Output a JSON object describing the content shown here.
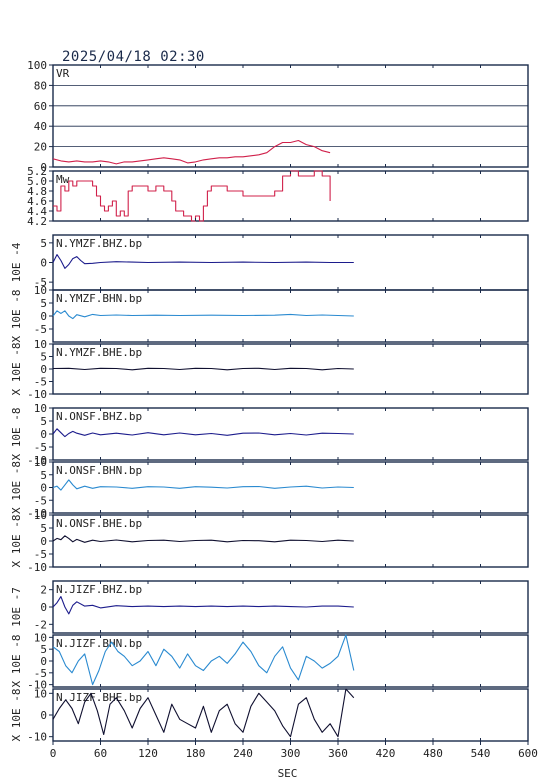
{
  "header": {
    "datetime": "2025/04/18 02:30"
  },
  "colors": {
    "frame": "#1a2a4a",
    "vr": "#d0204a",
    "mw": "#d0204a",
    "dark": "#1c1c8c",
    "light": "#2a8ad0",
    "black": "#101030"
  },
  "chart_data": {
    "type": "line",
    "xlabel": "SEC",
    "xlim": [
      0,
      600
    ],
    "xticks": [
      "0",
      "60",
      "120",
      "180",
      "240",
      "300",
      "360",
      "420",
      "480",
      "540",
      "600"
    ],
    "panels": [
      {
        "id": "vr",
        "title": "VR",
        "color": "#d0204a",
        "ylim": [
          0,
          100
        ],
        "grid": true,
        "yticks": [
          "0",
          "20",
          "40",
          "60",
          "80",
          "100"
        ],
        "ylabel": "",
        "series": {
          "x": [
            0,
            10,
            20,
            30,
            40,
            50,
            60,
            70,
            80,
            90,
            100,
            110,
            120,
            130,
            140,
            150,
            160,
            170,
            180,
            190,
            200,
            210,
            220,
            230,
            240,
            250,
            260,
            270,
            280,
            290,
            300,
            310,
            320,
            330,
            340,
            350
          ],
          "y": [
            8,
            6,
            5,
            6,
            5,
            5,
            6,
            5,
            3,
            5,
            5,
            6,
            7,
            8,
            9,
            8,
            7,
            4,
            5,
            7,
            8,
            9,
            9,
            10,
            10,
            11,
            12,
            14,
            20,
            24,
            24,
            26,
            22,
            20,
            16,
            14
          ]
        }
      },
      {
        "id": "mw",
        "title": "Mw",
        "color": "#d0204a",
        "ylim": [
          4.2,
          5.2
        ],
        "grid": false,
        "yticks": [
          "4.2",
          "4.4",
          "4.6",
          "4.8",
          "5.0",
          "5.2"
        ],
        "ylabel": "",
        "series": {
          "x": [
            0,
            5,
            10,
            15,
            20,
            25,
            30,
            40,
            50,
            55,
            60,
            65,
            70,
            75,
            80,
            85,
            90,
            95,
            100,
            110,
            120,
            130,
            140,
            150,
            155,
            160,
            165,
            170,
            175,
            180,
            185,
            190,
            195,
            200,
            210,
            220,
            230,
            240,
            250,
            260,
            270,
            280,
            290,
            300,
            310,
            320,
            330,
            340,
            350
          ],
          "y": [
            4.5,
            4.4,
            4.9,
            4.8,
            5.0,
            4.9,
            5.0,
            5.0,
            4.9,
            4.7,
            4.5,
            4.4,
            4.5,
            4.6,
            4.3,
            4.4,
            4.3,
            4.8,
            4.9,
            4.9,
            4.8,
            4.9,
            4.8,
            4.6,
            4.4,
            4.4,
            4.3,
            4.3,
            4.2,
            4.3,
            4.2,
            4.5,
            4.8,
            4.9,
            4.9,
            4.8,
            4.8,
            4.7,
            4.7,
            4.7,
            4.7,
            4.8,
            5.1,
            5.2,
            5.1,
            5.1,
            5.2,
            5.1,
            4.6
          ]
        }
      },
      {
        "id": "ymzf-bhz",
        "title": "N.YMZF.BHZ.bp",
        "color": "#1c1c8c",
        "ylim": [
          -7,
          7
        ],
        "grid": false,
        "yticks": [
          "-5",
          "0",
          "5"
        ],
        "ylabel": "10E -4",
        "series": {
          "x": [
            0,
            5,
            10,
            15,
            20,
            25,
            30,
            35,
            40,
            50,
            60,
            80,
            100,
            120,
            160,
            200,
            240,
            280,
            320,
            350,
            380
          ],
          "y": [
            0,
            2,
            0.5,
            -1.5,
            -0.5,
            1,
            1.5,
            0.5,
            -0.3,
            -0.2,
            0,
            0.2,
            0.1,
            0,
            0.1,
            0,
            0.1,
            0,
            0.1,
            0,
            0
          ]
        }
      },
      {
        "id": "ymzf-bhn",
        "title": "N.YMZF.BHN.bp",
        "color": "#2a8ad0",
        "ylim": [
          -10,
          10
        ],
        "grid": false,
        "yticks": [
          "-5",
          "0",
          "5",
          "10"
        ],
        "ylabel": "X 10E -8",
        "series": {
          "x": [
            0,
            5,
            10,
            15,
            20,
            25,
            30,
            40,
            50,
            60,
            80,
            100,
            130,
            160,
            200,
            240,
            280,
            300,
            320,
            340,
            360,
            380
          ],
          "y": [
            0,
            2,
            1,
            2,
            0,
            -1,
            0.5,
            -0.3,
            0.6,
            0.2,
            0.4,
            0.2,
            0.3,
            0.2,
            0.3,
            0.2,
            0.3,
            0.6,
            0.2,
            0.4,
            0.2,
            0
          ]
        }
      },
      {
        "id": "ymzf-bhe",
        "title": "N.YMZF.BHE.bp",
        "color": "#101030",
        "ylim": [
          -10,
          10
        ],
        "grid": false,
        "yticks": [
          "-10",
          "-5",
          "0",
          "5",
          "10"
        ],
        "ylabel": "X 10E -8",
        "series": {
          "x": [
            0,
            20,
            40,
            60,
            80,
            100,
            120,
            140,
            160,
            180,
            200,
            220,
            240,
            260,
            280,
            300,
            320,
            340,
            360,
            380
          ],
          "y": [
            0.2,
            0.3,
            -0.2,
            0.3,
            0.2,
            -0.3,
            0.3,
            0.2,
            -0.2,
            0.3,
            0.2,
            -0.3,
            0.2,
            0.3,
            -0.2,
            0.3,
            0.2,
            -0.3,
            0.2,
            0
          ]
        }
      },
      {
        "id": "onsf-bhz",
        "title": "N.ONSF.BHZ.bp",
        "color": "#1c1c8c",
        "ylim": [
          -10,
          10
        ],
        "grid": false,
        "yticks": [
          "-10",
          "-5",
          "0",
          "5",
          "10"
        ],
        "ylabel": "X 10E -8",
        "series": {
          "x": [
            0,
            5,
            10,
            15,
            20,
            25,
            30,
            40,
            50,
            60,
            80,
            100,
            120,
            140,
            160,
            180,
            200,
            220,
            240,
            260,
            280,
            300,
            320,
            340,
            360,
            380
          ],
          "y": [
            0,
            2,
            0.5,
            -1,
            0.2,
            1,
            0.3,
            -0.5,
            0.4,
            -0.3,
            0.3,
            -0.4,
            0.5,
            -0.3,
            0.4,
            -0.3,
            0.2,
            -0.5,
            0.3,
            0.4,
            -0.3,
            0.2,
            -0.4,
            0.3,
            0.2,
            0
          ]
        }
      },
      {
        "id": "onsf-bhn",
        "title": "N.ONSF.BHN.bp",
        "color": "#2a8ad0",
        "ylim": [
          -10,
          10
        ],
        "grid": false,
        "yticks": [
          "-10",
          "-5",
          "0",
          "5",
          "10"
        ],
        "ylabel": "X 10E -8",
        "series": {
          "x": [
            0,
            5,
            10,
            15,
            20,
            25,
            30,
            40,
            50,
            60,
            80,
            100,
            120,
            140,
            160,
            180,
            200,
            220,
            240,
            260,
            280,
            300,
            320,
            340,
            360,
            380
          ],
          "y": [
            0,
            0.5,
            -1,
            1,
            3,
            1,
            -0.5,
            0.5,
            -0.3,
            0.3,
            0.2,
            -0.3,
            0.3,
            0.2,
            -0.3,
            0.3,
            0.1,
            -0.2,
            0.3,
            0.4,
            -0.3,
            0.2,
            0.5,
            -0.2,
            0.2,
            0
          ]
        }
      },
      {
        "id": "onsf-bhe",
        "title": "N.ONSF.BHE.bp",
        "color": "#101030",
        "ylim": [
          -10,
          10
        ],
        "grid": false,
        "yticks": [
          "-10",
          "-5",
          "0",
          "5",
          "10"
        ],
        "ylabel": "X 10E -8",
        "series": {
          "x": [
            0,
            5,
            10,
            15,
            20,
            25,
            30,
            40,
            50,
            60,
            80,
            100,
            120,
            140,
            160,
            180,
            200,
            220,
            240,
            260,
            280,
            300,
            320,
            340,
            360,
            380
          ],
          "y": [
            0,
            1,
            0.5,
            2,
            1,
            -0.3,
            0.6,
            -0.5,
            0.3,
            -0.2,
            0.4,
            -0.3,
            0.2,
            0.3,
            -0.2,
            0.2,
            0.3,
            -0.3,
            0.2,
            0.1,
            -0.3,
            0.3,
            0.2,
            -0.2,
            0.3,
            0
          ]
        }
      },
      {
        "id": "jizf-bhz",
        "title": "N.JIZF.BHZ.bp",
        "color": "#1c1c8c",
        "ylim": [
          -3,
          3
        ],
        "grid": false,
        "yticks": [
          "-2",
          "0",
          "2"
        ],
        "ylabel": "10E -7",
        "series": {
          "x": [
            0,
            5,
            10,
            15,
            20,
            25,
            30,
            40,
            50,
            60,
            80,
            100,
            120,
            140,
            160,
            180,
            200,
            220,
            240,
            260,
            280,
            300,
            320,
            340,
            360,
            380
          ],
          "y": [
            0,
            0.5,
            1.2,
            0,
            -0.8,
            0.2,
            0.6,
            0.1,
            0.2,
            -0.1,
            0.15,
            0.05,
            0.1,
            0.05,
            0.1,
            0.05,
            0.1,
            0.05,
            0.1,
            0.05,
            0.1,
            0.05,
            0,
            0.1,
            0.1,
            0
          ]
        }
      },
      {
        "id": "jizf-bhn",
        "title": "N.JIZF.BHN.bp",
        "color": "#2a8ad0",
        "ylim": [
          -11,
          11
        ],
        "grid": false,
        "yticks": [
          "-10",
          "-5",
          "0",
          "5",
          "10"
        ],
        "ylabel": "X 10E -8",
        "series": {
          "x": [
            0,
            8,
            16,
            24,
            32,
            40,
            50,
            58,
            66,
            74,
            82,
            90,
            100,
            110,
            120,
            130,
            140,
            150,
            160,
            170,
            180,
            190,
            200,
            210,
            220,
            230,
            240,
            250,
            260,
            270,
            280,
            290,
            300,
            310,
            320,
            330,
            340,
            350,
            360,
            370,
            380
          ],
          "y": [
            6,
            4,
            -2,
            -5,
            0,
            3,
            -10,
            -4,
            4,
            8,
            4,
            2,
            -2,
            0,
            4,
            -2,
            5,
            2,
            -3,
            3,
            -2,
            -4,
            0,
            2,
            -1,
            3,
            8,
            4,
            -2,
            -5,
            2,
            6,
            -3,
            -8,
            2,
            0,
            -3,
            -1,
            2,
            11,
            -4
          ]
        }
      },
      {
        "id": "jizf-bhe",
        "title": "N.JIZF.BHE.bp",
        "color": "#101030",
        "ylim": [
          -12,
          12
        ],
        "grid": false,
        "yticks": [
          "-10",
          "0",
          "10"
        ],
        "ylabel": "X 10E -8",
        "series": {
          "x": [
            0,
            8,
            16,
            24,
            32,
            40,
            48,
            56,
            64,
            72,
            80,
            90,
            100,
            110,
            120,
            130,
            140,
            150,
            160,
            170,
            180,
            190,
            200,
            210,
            220,
            230,
            240,
            250,
            260,
            270,
            280,
            290,
            300,
            310,
            320,
            330,
            340,
            350,
            360,
            370,
            380
          ],
          "y": [
            -2,
            3,
            7,
            3,
            -4,
            6,
            10,
            2,
            -9,
            5,
            8,
            2,
            -6,
            3,
            8,
            0,
            -8,
            5,
            -2,
            -4,
            -6,
            4,
            -8,
            2,
            5,
            -4,
            -8,
            4,
            10,
            6,
            2,
            -5,
            -10,
            5,
            8,
            -2,
            -8,
            -4,
            -10,
            12,
            8
          ]
        }
      }
    ]
  }
}
